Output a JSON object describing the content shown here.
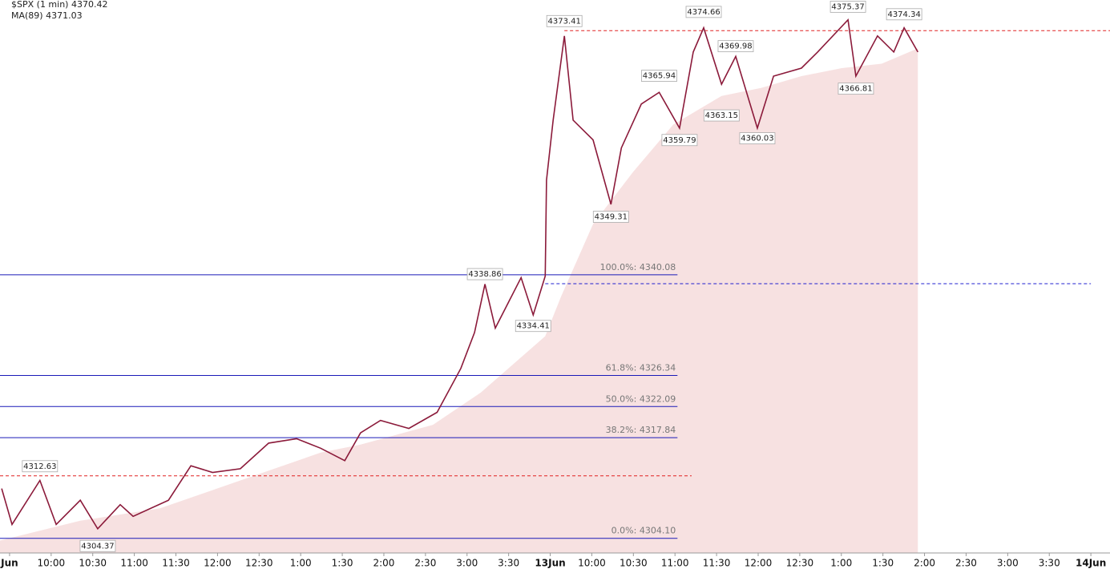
{
  "chart_data": {
    "type": "line",
    "legend": [
      {
        "name": "$SPX (1 min) 4370.42",
        "color": "#333333"
      },
      {
        "name": "MA(89) 4371.03",
        "color": "#d6334f"
      }
    ],
    "xlim": [
      -0.23,
      26.46
    ],
    "ylim": [
      4302.1,
      4377.6
    ],
    "xticks": [
      {
        "value": 0,
        "label": "Jun"
      },
      {
        "value": 1,
        "label": "10:00"
      },
      {
        "value": 2,
        "label": "10:30"
      },
      {
        "value": 3,
        "label": "11:00"
      },
      {
        "value": 4,
        "label": "11:30"
      },
      {
        "value": 5,
        "label": "12:00"
      },
      {
        "value": 6,
        "label": "12:30"
      },
      {
        "value": 7,
        "label": "1:00"
      },
      {
        "value": 8,
        "label": "1:30"
      },
      {
        "value": 9,
        "label": "2:00"
      },
      {
        "value": 10,
        "label": "2:30"
      },
      {
        "value": 11,
        "label": "3:00"
      },
      {
        "value": 12,
        "label": "3:30"
      },
      {
        "value": 13,
        "label": "13Jun"
      },
      {
        "value": 14,
        "label": "10:00"
      },
      {
        "value": 15,
        "label": "10:30"
      },
      {
        "value": 16,
        "label": "11:00"
      },
      {
        "value": 17,
        "label": "11:30"
      },
      {
        "value": 18,
        "label": "12:00"
      },
      {
        "value": 19,
        "label": "12:30"
      },
      {
        "value": 20,
        "label": "1:00"
      },
      {
        "value": 21,
        "label": "1:30"
      },
      {
        "value": 22,
        "label": "2:00"
      },
      {
        "value": 23,
        "label": "2:30"
      },
      {
        "value": 24,
        "label": "3:00"
      },
      {
        "value": 25,
        "label": "3:30"
      },
      {
        "value": 26,
        "label": "14Jun"
      }
    ],
    "series": [
      {
        "name": "$SPX (1 min) 4370.42",
        "color": "#8b1a3a",
        "x": [
          -0.19,
          0.06,
          0.73,
          1.12,
          1.7,
          2.12,
          2.66,
          2.97,
          3.82,
          4.36,
          4.88,
          5.55,
          6.23,
          6.9,
          7.48,
          8.06,
          8.44,
          8.92,
          9.6,
          10.28,
          10.85,
          11.18,
          11.43,
          11.68,
          12.3,
          12.59,
          12.88,
          12.91,
          13.07,
          13.34,
          13.55,
          14.03,
          14.46,
          14.71,
          15.19,
          15.62,
          16.11,
          16.44,
          16.69,
          17.12,
          17.46,
          17.98,
          18.37,
          19.04,
          19.43,
          20.16,
          20.35,
          20.87,
          21.26,
          21.51,
          21.84
        ],
        "values": [
          4310.9,
          4306.0,
          4312.0,
          4306.0,
          4309.3,
          4305.4,
          4308.7,
          4307.1,
          4309.3,
          4314.0,
          4313.1,
          4313.6,
          4317.1,
          4317.7,
          4316.4,
          4314.7,
          4318.5,
          4320.2,
          4319.1,
          4321.3,
          4327.3,
          4332.2,
          4338.8,
          4332.8,
          4339.7,
          4334.6,
          4339.9,
          4353.0,
          4361.2,
          4372.7,
          4361.2,
          4358.5,
          4349.7,
          4357.4,
          4363.4,
          4365.0,
          4360.1,
          4370.5,
          4373.8,
          4366.1,
          4369.9,
          4360.1,
          4367.2,
          4368.3,
          4370.5,
          4374.9,
          4367.2,
          4372.7,
          4370.5,
          4373.8,
          4370.5
        ]
      },
      {
        "name": "MA(89) 4371.03",
        "color": "#f7e1e1",
        "x": [
          -0.23,
          1.7,
          3.62,
          5.55,
          7.48,
          8.44,
          10.18,
          11.33,
          12.88,
          13.26,
          14.03,
          14.99,
          15.96,
          17.12,
          18.08,
          19.04,
          20.01,
          20.97,
          21.84
        ],
        "values": [
          4303.8,
          4306.5,
          4308.2,
          4312.0,
          4315.8,
          4316.9,
          4319.6,
          4324.0,
          4331.7,
          4337.1,
          4347.0,
          4354.1,
          4360.6,
          4364.5,
          4365.6,
          4367.2,
          4368.3,
          4368.9,
          4371.0
        ]
      }
    ],
    "price_labels": [
      {
        "x": 0.73,
        "value": 4312.63,
        "position": "above"
      },
      {
        "x": 2.12,
        "value": 4304.37,
        "position": "below"
      },
      {
        "x": 11.43,
        "value": 4338.86,
        "position": "above"
      },
      {
        "x": 12.59,
        "value": 4334.41,
        "position": "below"
      },
      {
        "x": 13.34,
        "value": 4373.41,
        "position": "above"
      },
      {
        "x": 14.46,
        "value": 4349.31,
        "position": "below"
      },
      {
        "x": 15.62,
        "value": 4365.94,
        "position": "above"
      },
      {
        "x": 16.11,
        "value": 4359.79,
        "position": "below"
      },
      {
        "x": 16.69,
        "value": 4374.66,
        "position": "above"
      },
      {
        "x": 17.12,
        "value": 4363.15,
        "position": "below"
      },
      {
        "x": 17.46,
        "value": 4369.98,
        "position": "above"
      },
      {
        "x": 17.98,
        "value": 4360.03,
        "position": "below"
      },
      {
        "x": 20.16,
        "value": 4375.37,
        "position": "above"
      },
      {
        "x": 20.35,
        "value": 4366.81,
        "position": "below"
      },
      {
        "x": 21.51,
        "value": 4374.34,
        "position": "above"
      }
    ],
    "fib_levels": [
      {
        "value": 4340.08,
        "label": "100.0%: 4340.08"
      },
      {
        "value": 4326.34,
        "label": "61.8%: 4326.34"
      },
      {
        "value": 4322.09,
        "label": "50.0%: 4322.09"
      },
      {
        "value": 4317.84,
        "label": "38.2%: 4317.84"
      },
      {
        "value": 4304.1,
        "label": "0.0%: 4304.10"
      }
    ],
    "fib_end": 16.06,
    "fib_color": "#1a1ab8",
    "reference_lines": [
      {
        "value": 4373.41,
        "from": 13.34,
        "to": 26.46,
        "color": "#e02020"
      },
      {
        "value": 4312.63,
        "from": -0.23,
        "to": 16.4,
        "color": "#e02020"
      },
      {
        "value": 4338.86,
        "from": 12.88,
        "to": 26.0,
        "color": "#2020d0"
      }
    ]
  }
}
